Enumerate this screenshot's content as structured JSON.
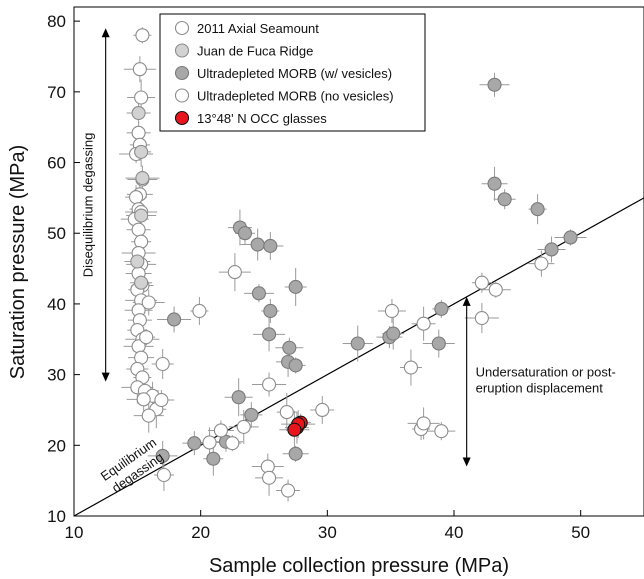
{
  "chart_data": {
    "type": "scatter",
    "title": "",
    "xlabel": "Sample collection pressure (MPa)",
    "ylabel": "Saturation pressure (MPa)",
    "xlim": [
      10,
      55
    ],
    "ylim": [
      10,
      82
    ],
    "xticks": [
      10,
      20,
      30,
      40,
      50
    ],
    "yticks": [
      10,
      20,
      30,
      40,
      50,
      60,
      70,
      80
    ],
    "grid": false,
    "legend_position": "top-left",
    "legend": [
      {
        "label": "2011 Axial Seamount",
        "fill": "#ffffff",
        "stroke": "#8c8c8c"
      },
      {
        "label": "Juan de Fuca Ridge",
        "fill": "#d2d2d2",
        "stroke": "#8c8c8c"
      },
      {
        "label": "Ultradepleted MORB (w/ vesicles)",
        "fill": "#a8a8a8",
        "stroke": "#7a7a7a"
      },
      {
        "label": "Ultradepleted MORB (no vesicles)",
        "fill": "#ffffff",
        "stroke": "#8c8c8c"
      },
      {
        "label": "13°48' N OCC glasses",
        "fill": "#e8161c",
        "stroke": "#111111"
      }
    ],
    "reference_line": {
      "label": "Equilibrium degassing",
      "x": [
        10,
        55
      ],
      "y": [
        10,
        55
      ]
    },
    "annotations": [
      {
        "text": "Disequilibrium degassing",
        "arrow_x": 12.5,
        "arrow_y": [
          29,
          79
        ]
      },
      {
        "text_lines": [
          "Undersaturation or post-",
          "eruption displacement"
        ],
        "arrow_x": 41,
        "arrow_y": [
          17,
          41
        ]
      }
    ],
    "series": [
      {
        "key": "axial",
        "fill": "#ffffff",
        "stroke": "#8c8c8c",
        "points": [
          [
            15.4,
            78
          ],
          [
            15.2,
            73.2
          ],
          [
            15.3,
            69.2
          ],
          [
            15.1,
            64.2
          ],
          [
            15.2,
            62.5
          ],
          [
            14.9,
            61.2
          ],
          [
            15.4,
            57.6
          ],
          [
            15.2,
            55.5
          ],
          [
            14.9,
            55.1
          ],
          [
            15.1,
            53.4
          ],
          [
            15.3,
            53
          ],
          [
            14.8,
            52
          ],
          [
            15.1,
            50.5
          ],
          [
            15.3,
            48.8
          ],
          [
            15.1,
            47.2
          ],
          [
            15.3,
            45.6
          ],
          [
            15.1,
            44.3
          ],
          [
            15.4,
            42.6
          ],
          [
            15,
            42
          ],
          [
            15.3,
            40.5
          ],
          [
            15.1,
            39.1
          ],
          [
            15.2,
            37.7
          ],
          [
            15,
            36.3
          ],
          [
            15.4,
            35
          ],
          [
            15.1,
            34
          ],
          [
            15.3,
            32.4
          ],
          [
            15,
            30.8
          ],
          [
            15.4,
            29.6
          ],
          [
            15,
            28.2
          ],
          [
            15.6,
            27.7
          ],
          [
            16.2,
            27
          ],
          [
            16.5,
            25.1
          ],
          [
            15.5,
            26.5
          ],
          [
            15.9,
            24.2
          ],
          [
            16.9,
            26.4
          ],
          [
            17,
            31.5
          ],
          [
            15.7,
            35.3
          ],
          [
            15.9,
            40.2
          ]
        ]
      },
      {
        "key": "jdf",
        "fill": "#d2d2d2",
        "stroke": "#8c8c8c",
        "points": [
          [
            15.1,
            67
          ],
          [
            15.3,
            61.5
          ],
          [
            15.4,
            57.8
          ],
          [
            15.3,
            52.5
          ],
          [
            15,
            46
          ],
          [
            15.3,
            43
          ]
        ]
      },
      {
        "key": "udw",
        "fill": "#a8a8a8",
        "stroke": "#7a7a7a",
        "points": [
          [
            43.2,
            71
          ],
          [
            43.2,
            57
          ],
          [
            44,
            54.8
          ],
          [
            46.6,
            53.4
          ],
          [
            49.2,
            49.4
          ],
          [
            47.7,
            47.7
          ],
          [
            23.1,
            50.8
          ],
          [
            23.5,
            50
          ],
          [
            24.5,
            48.4
          ],
          [
            24.6,
            41.5
          ],
          [
            25.5,
            48.2
          ],
          [
            27.5,
            42.4
          ],
          [
            25.5,
            39
          ],
          [
            25.4,
            35.7
          ],
          [
            27,
            33.8
          ],
          [
            26.9,
            31.8
          ],
          [
            27.5,
            31.3
          ],
          [
            17.9,
            37.8
          ],
          [
            32.4,
            34.4
          ],
          [
            34.9,
            35.3
          ],
          [
            35.2,
            35.8
          ],
          [
            39,
            39.3
          ],
          [
            38.8,
            34.4
          ],
          [
            23,
            26.8
          ],
          [
            19.5,
            20.3
          ],
          [
            21,
            18.1
          ],
          [
            22,
            20.5
          ],
          [
            17,
            18.5
          ],
          [
            27.5,
            18.8
          ],
          [
            24,
            24.3
          ]
        ]
      },
      {
        "key": "udn",
        "fill": "#ffffff",
        "stroke": "#8c8c8c",
        "points": [
          [
            19.9,
            39
          ],
          [
            22.7,
            44.5
          ],
          [
            35.1,
            39
          ],
          [
            37.6,
            37.2
          ],
          [
            42.2,
            43
          ],
          [
            42.2,
            38
          ],
          [
            43.3,
            42
          ],
          [
            46.9,
            45.7
          ],
          [
            36.6,
            31
          ],
          [
            37.4,
            22.3
          ],
          [
            37.6,
            23.1
          ],
          [
            39,
            22
          ],
          [
            29.6,
            25
          ],
          [
            26.8,
            24.7
          ],
          [
            25.4,
            28.6
          ],
          [
            23.4,
            22.6
          ],
          [
            21.6,
            22.1
          ],
          [
            20.7,
            20.4
          ],
          [
            22.5,
            20.3
          ],
          [
            25.3,
            17
          ],
          [
            25.4,
            15.4
          ],
          [
            26.9,
            13.6
          ],
          [
            17.1,
            15.8
          ]
        ]
      },
      {
        "key": "occ",
        "fill": "#e8161c",
        "stroke": "#111111",
        "points": [
          [
            27.6,
            22.5
          ],
          [
            27.9,
            23.2
          ],
          [
            27.7,
            23
          ],
          [
            27.4,
            22.2
          ]
        ]
      }
    ]
  }
}
